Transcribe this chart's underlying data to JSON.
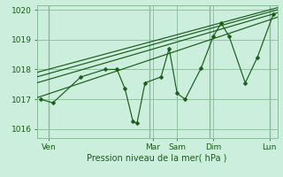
{
  "xlabel": "Pression niveau de la mer( hPa )",
  "ylim": [
    1015.7,
    1020.15
  ],
  "xlim": [
    0,
    30
  ],
  "yticks": [
    1016,
    1017,
    1018,
    1019,
    1020
  ],
  "ytick_labels": [
    "1016",
    "1017",
    "1018",
    "1019",
    "1020"
  ],
  "xtick_positions": [
    1.5,
    14.5,
    17.5,
    22,
    29
  ],
  "xtick_labels": [
    "Ven",
    "Mar",
    "Sam",
    "Dim",
    "Lun"
  ],
  "vline_positions": [
    1.5,
    14.0,
    21.5,
    29.0
  ],
  "bg_color": "#cceedd",
  "grid_color": "#88bb99",
  "line_color": "#1a5c1a",
  "trend_lines": [
    {
      "x": [
        0,
        30
      ],
      "y": [
        1017.05,
        1019.75
      ]
    },
    {
      "x": [
        0,
        30
      ],
      "y": [
        1017.55,
        1019.9
      ]
    },
    {
      "x": [
        0,
        30
      ],
      "y": [
        1017.75,
        1020.0
      ]
    },
    {
      "x": [
        0,
        30
      ],
      "y": [
        1017.9,
        1020.07
      ]
    }
  ],
  "data_line": {
    "x": [
      0.5,
      2.0,
      5.5,
      8.5,
      10.0,
      11.0,
      12.0,
      12.5,
      13.5,
      15.5,
      16.5,
      17.5,
      18.5,
      20.5,
      22.0,
      23.0,
      24.0,
      26.0,
      27.5,
      29.5
    ],
    "y": [
      1017.0,
      1016.88,
      1017.75,
      1018.0,
      1018.0,
      1017.35,
      1016.25,
      1016.2,
      1017.55,
      1017.75,
      1018.7,
      1017.2,
      1017.0,
      1018.05,
      1019.1,
      1019.55,
      1019.1,
      1017.55,
      1018.4,
      1019.85
    ]
  },
  "marker_size": 2.5
}
